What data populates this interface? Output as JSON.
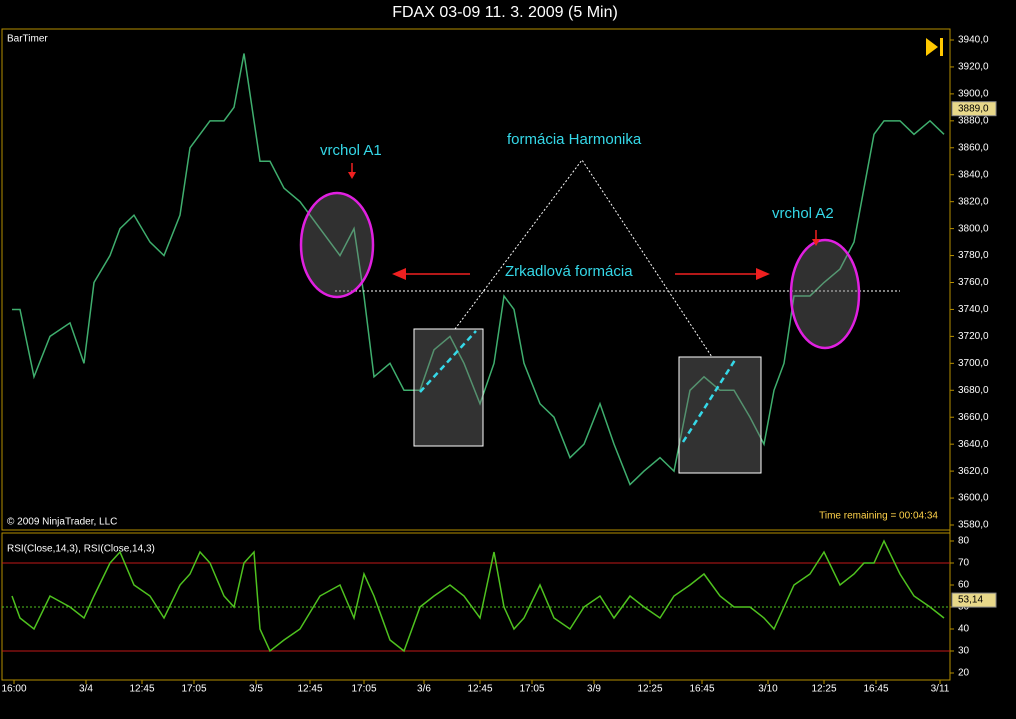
{
  "title": "FDAX 03-09  11. 3. 2009 (5 Min)",
  "chart_data": [
    {
      "type": "line",
      "indicator": "BarTimer",
      "copyright": "© 2009 NinjaTrader, LLC",
      "time_remaining": "Time remaining = 00:04:34",
      "annotations": [
        "vrchol A1",
        "vrchol A2",
        "formácia Harmonika",
        "Zrkadlová formácia"
      ],
      "x": [
        1,
        5,
        12,
        20,
        30,
        37,
        42,
        50,
        55,
        62,
        70,
        77,
        85,
        90,
        95,
        100,
        107,
        112,
        117,
        122,
        125,
        130,
        137,
        145,
        155,
        165,
        172,
        177,
        182,
        190,
        197,
        205,
        212,
        220,
        227,
        235,
        242,
        247,
        252,
        257,
        265,
        272,
        280,
        287,
        295,
        302,
        310,
        317,
        325,
        332,
        340,
        347,
        355,
        362,
        370,
        377,
        382,
        387,
        392,
        400,
        407,
        415,
        422,
        427,
        432,
        437,
        445,
        452,
        460,
        467
      ],
      "series": [
        {
          "color": "#3fae6e",
          "values": [
            3740,
            3740,
            3690,
            3720,
            3730,
            3700,
            3760,
            3780,
            3800,
            3810,
            3790,
            3780,
            3810,
            3860,
            3870,
            3880,
            3880,
            3890,
            3930,
            3880,
            3850,
            3850,
            3830,
            3820,
            3800,
            3780,
            3800,
            3750,
            3690,
            3700,
            3680,
            3680,
            3710,
            3720,
            3700,
            3670,
            3700,
            3750,
            3740,
            3700,
            3670,
            3660,
            3630,
            3640,
            3670,
            3640,
            3610,
            3620,
            3630,
            3620,
            3680,
            3690,
            3680,
            3680,
            3660,
            3640,
            3680,
            3700,
            3750,
            3750,
            3760,
            3770,
            3790,
            3830,
            3870,
            3880,
            3880,
            3870,
            3880,
            3870
          ]
        }
      ],
      "last_price": {
        "value": 3889,
        "label": "3889,0"
      },
      "xlim": [
        0,
        470
      ],
      "ylim": [
        3580,
        3940
      ],
      "yticks": [
        {
          "value": 3580,
          "label": "3580,0"
        },
        {
          "value": 3600,
          "label": "3600,0"
        },
        {
          "value": 3620,
          "label": "3620,0"
        },
        {
          "value": 3640,
          "label": "3640,0"
        },
        {
          "value": 3660,
          "label": "3660,0"
        },
        {
          "value": 3680,
          "label": "3680,0"
        },
        {
          "value": 3700,
          "label": "3700,0"
        },
        {
          "value": 3720,
          "label": "3720,0"
        },
        {
          "value": 3740,
          "label": "3740,0"
        },
        {
          "value": 3760,
          "label": "3760,0"
        },
        {
          "value": 3780,
          "label": "3780,0"
        },
        {
          "value": 3800,
          "label": "3800,0"
        },
        {
          "value": 3820,
          "label": "3820,0"
        },
        {
          "value": 3840,
          "label": "3840,0"
        },
        {
          "value": 3860,
          "label": "3860,0"
        },
        {
          "value": 3880,
          "label": "3880,0"
        },
        {
          "value": 3900,
          "label": "3900,0"
        },
        {
          "value": 3920,
          "label": "3920,0"
        },
        {
          "value": 3940,
          "label": "3940,0"
        }
      ]
    },
    {
      "type": "line",
      "title": "RSI(Close,14,3), RSI(Close,14,3)",
      "x": [
        1,
        5,
        12,
        20,
        30,
        37,
        42,
        50,
        55,
        62,
        70,
        77,
        85,
        90,
        95,
        100,
        107,
        112,
        117,
        122,
        125,
        130,
        137,
        145,
        155,
        165,
        172,
        177,
        182,
        190,
        197,
        205,
        212,
        220,
        227,
        235,
        242,
        247,
        252,
        257,
        265,
        272,
        280,
        287,
        295,
        302,
        310,
        317,
        325,
        332,
        340,
        347,
        355,
        362,
        370,
        377,
        382,
        387,
        392,
        400,
        407,
        415,
        422,
        427,
        432,
        437,
        445,
        452,
        460,
        467
      ],
      "series": [
        {
          "color": "#4fc21f",
          "values": [
            55,
            45,
            40,
            55,
            50,
            45,
            55,
            70,
            75,
            60,
            55,
            45,
            60,
            65,
            75,
            70,
            55,
            50,
            70,
            75,
            40,
            30,
            35,
            40,
            55,
            60,
            45,
            65,
            55,
            35,
            30,
            50,
            55,
            60,
            55,
            45,
            75,
            50,
            40,
            45,
            60,
            45,
            40,
            50,
            55,
            45,
            55,
            50,
            45,
            55,
            60,
            65,
            55,
            50,
            50,
            45,
            40,
            50,
            60,
            65,
            75,
            60,
            65,
            70,
            70,
            80,
            65,
            55,
            50,
            45
          ]
        }
      ],
      "last_value": {
        "value": 53.14,
        "label": "53,14"
      },
      "overbought": 70,
      "oversold": 30,
      "midline": 50,
      "xlim": [
        0,
        470
      ],
      "xticks": [
        {
          "value": 2,
          "label": "16:00"
        },
        {
          "value": 38,
          "label": "3/4"
        },
        {
          "value": 66,
          "label": "12:45"
        },
        {
          "value": 92,
          "label": "17:05"
        },
        {
          "value": 123,
          "label": "3/5"
        },
        {
          "value": 150,
          "label": "12:45"
        },
        {
          "value": 177,
          "label": "17:05"
        },
        {
          "value": 207,
          "label": "3/6"
        },
        {
          "value": 235,
          "label": "12:45"
        },
        {
          "value": 261,
          "label": "17:05"
        },
        {
          "value": 292,
          "label": "3/9"
        },
        {
          "value": 320,
          "label": "12:25"
        },
        {
          "value": 346,
          "label": "16:45"
        },
        {
          "value": 379,
          "label": "3/10"
        },
        {
          "value": 407,
          "label": "12:25"
        },
        {
          "value": 433,
          "label": "16:45"
        },
        {
          "value": 465,
          "label": "3/11"
        }
      ],
      "ylim": [
        20,
        80
      ],
      "yticks": [
        20,
        30,
        40,
        50,
        60,
        70,
        80
      ]
    }
  ]
}
